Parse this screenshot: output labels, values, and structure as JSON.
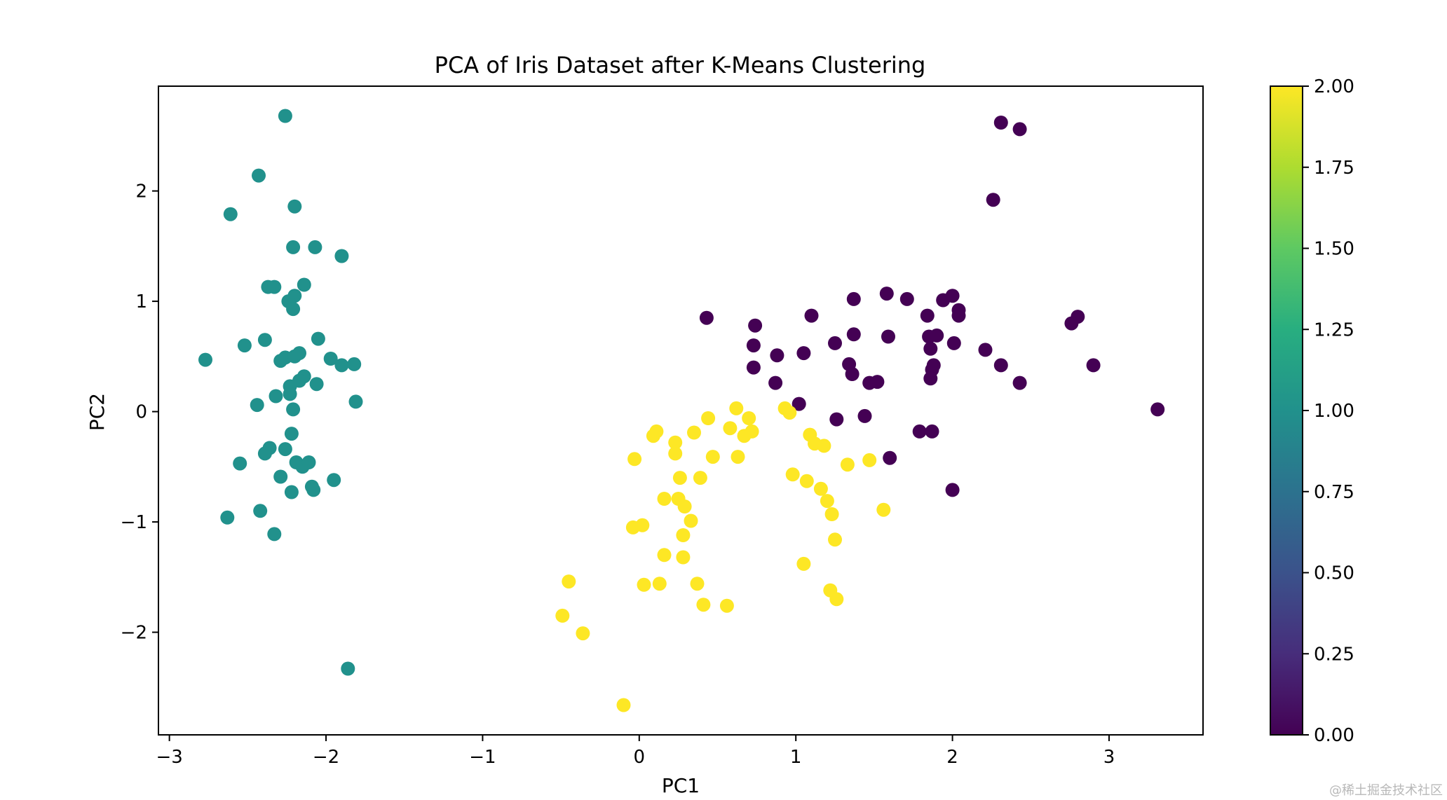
{
  "chart_data": {
    "type": "scatter",
    "title": "PCA of Iris Dataset after K-Means Clustering",
    "xlabel": "PC1",
    "ylabel": "PC2",
    "xlim": [
      -3.07,
      3.6
    ],
    "ylim": [
      -2.93,
      2.95
    ],
    "xticks": [
      -3,
      -2,
      -1,
      0,
      1,
      2,
      3
    ],
    "xtick_labels": [
      "−3",
      "−2",
      "−1",
      "0",
      "1",
      "2",
      "3"
    ],
    "yticks": [
      -2,
      -1,
      0,
      1,
      2
    ],
    "ytick_labels": [
      "−2",
      "−1",
      "0",
      "1",
      "2"
    ],
    "grid": false,
    "colorbar": {
      "colormap": "viridis",
      "range": [
        0,
        2
      ],
      "ticks": [
        0,
        0.25,
        0.5,
        0.75,
        1,
        1.25,
        1.5,
        1.75,
        2
      ],
      "tick_labels": [
        "0.00",
        "0.25",
        "0.50",
        "0.75",
        "1.00",
        "1.25",
        "1.50",
        "1.75",
        "2.00"
      ]
    },
    "colors": {
      "cluster_0": "#440154",
      "cluster_1": "#21918c",
      "cluster_2": "#fde725"
    },
    "points": [
      [
        -2.26,
        2.68,
        1
      ],
      [
        -2.43,
        2.14,
        1
      ],
      [
        -2.61,
        1.79,
        1
      ],
      [
        -2.2,
        1.86,
        1
      ],
      [
        -2.21,
        1.49,
        1
      ],
      [
        -2.07,
        1.49,
        1
      ],
      [
        -1.9,
        1.41,
        1
      ],
      [
        -2.37,
        1.13,
        1
      ],
      [
        -2.33,
        1.13,
        1
      ],
      [
        -2.14,
        1.15,
        1
      ],
      [
        -2.2,
        1.05,
        1
      ],
      [
        -2.24,
        1.0,
        1
      ],
      [
        -2.21,
        0.93,
        1
      ],
      [
        -2.39,
        0.65,
        1
      ],
      [
        -2.05,
        0.66,
        1
      ],
      [
        -2.52,
        0.6,
        1
      ],
      [
        -2.77,
        0.47,
        1
      ],
      [
        -2.29,
        0.46,
        1
      ],
      [
        -2.26,
        0.49,
        1
      ],
      [
        -2.2,
        0.5,
        1
      ],
      [
        -2.17,
        0.53,
        1
      ],
      [
        -1.97,
        0.48,
        1
      ],
      [
        -1.9,
        0.42,
        1
      ],
      [
        -1.82,
        0.43,
        1
      ],
      [
        -2.14,
        0.32,
        1
      ],
      [
        -2.17,
        0.28,
        1
      ],
      [
        -2.23,
        0.23,
        1
      ],
      [
        -2.06,
        0.25,
        1
      ],
      [
        -2.23,
        0.16,
        1
      ],
      [
        -2.32,
        0.14,
        1
      ],
      [
        -2.44,
        0.06,
        1
      ],
      [
        -2.21,
        0.02,
        1
      ],
      [
        -1.81,
        0.09,
        1
      ],
      [
        -2.22,
        -0.2,
        1
      ],
      [
        -2.26,
        -0.34,
        1
      ],
      [
        -2.36,
        -0.33,
        1
      ],
      [
        -2.39,
        -0.38,
        1
      ],
      [
        -2.55,
        -0.47,
        1
      ],
      [
        -2.19,
        -0.46,
        1
      ],
      [
        -2.15,
        -0.5,
        1
      ],
      [
        -2.11,
        -0.46,
        1
      ],
      [
        -2.29,
        -0.59,
        1
      ],
      [
        -1.95,
        -0.62,
        1
      ],
      [
        -2.09,
        -0.68,
        1
      ],
      [
        -2.08,
        -0.71,
        1
      ],
      [
        -2.22,
        -0.73,
        1
      ],
      [
        -2.42,
        -0.9,
        1
      ],
      [
        -2.63,
        -0.96,
        1
      ],
      [
        -2.33,
        -1.11,
        1
      ],
      [
        -1.86,
        -2.33,
        1
      ],
      [
        2.31,
        2.62,
        0
      ],
      [
        2.43,
        2.56,
        0
      ],
      [
        2.26,
        1.92,
        0
      ],
      [
        0.43,
        0.85,
        0
      ],
      [
        0.74,
        0.78,
        0
      ],
      [
        1.1,
        0.87,
        0
      ],
      [
        1.37,
        1.02,
        0
      ],
      [
        1.58,
        1.07,
        0
      ],
      [
        1.71,
        1.02,
        0
      ],
      [
        1.94,
        1.01,
        0
      ],
      [
        2.0,
        1.05,
        0
      ],
      [
        2.04,
        0.92,
        0
      ],
      [
        2.04,
        0.87,
        0
      ],
      [
        1.84,
        0.87,
        0
      ],
      [
        2.8,
        0.86,
        0
      ],
      [
        2.76,
        0.8,
        0
      ],
      [
        1.37,
        0.7,
        0
      ],
      [
        1.59,
        0.68,
        0
      ],
      [
        1.85,
        0.68,
        0
      ],
      [
        1.9,
        0.69,
        0
      ],
      [
        2.01,
        0.62,
        0
      ],
      [
        1.25,
        0.62,
        0
      ],
      [
        0.73,
        0.6,
        0
      ],
      [
        1.86,
        0.57,
        0
      ],
      [
        2.21,
        0.56,
        0
      ],
      [
        0.88,
        0.51,
        0
      ],
      [
        1.05,
        0.53,
        0
      ],
      [
        1.34,
        0.43,
        0
      ],
      [
        0.73,
        0.4,
        0
      ],
      [
        1.36,
        0.34,
        0
      ],
      [
        1.87,
        0.38,
        0
      ],
      [
        1.88,
        0.42,
        0
      ],
      [
        2.31,
        0.42,
        0
      ],
      [
        2.9,
        0.42,
        0
      ],
      [
        1.86,
        0.3,
        0
      ],
      [
        0.87,
        0.26,
        0
      ],
      [
        1.47,
        0.26,
        0
      ],
      [
        1.52,
        0.27,
        0
      ],
      [
        2.43,
        0.26,
        0
      ],
      [
        1.02,
        0.07,
        0
      ],
      [
        1.44,
        -0.04,
        0
      ],
      [
        1.26,
        -0.07,
        0
      ],
      [
        3.31,
        0.02,
        0
      ],
      [
        1.79,
        -0.18,
        0
      ],
      [
        1.87,
        -0.18,
        0
      ],
      [
        1.6,
        -0.42,
        0
      ],
      [
        2.0,
        -0.71,
        0
      ],
      [
        0.62,
        0.03,
        2
      ],
      [
        0.93,
        0.03,
        2
      ],
      [
        0.96,
        -0.01,
        2
      ],
      [
        0.7,
        -0.06,
        2
      ],
      [
        0.44,
        -0.06,
        2
      ],
      [
        0.58,
        -0.15,
        2
      ],
      [
        0.72,
        -0.18,
        2
      ],
      [
        0.67,
        -0.22,
        2
      ],
      [
        0.35,
        -0.19,
        2
      ],
      [
        0.09,
        -0.22,
        2
      ],
      [
        0.11,
        -0.18,
        2
      ],
      [
        1.09,
        -0.21,
        2
      ],
      [
        1.12,
        -0.29,
        2
      ],
      [
        1.18,
        -0.31,
        2
      ],
      [
        0.23,
        -0.28,
        2
      ],
      [
        0.23,
        -0.38,
        2
      ],
      [
        -0.03,
        -0.43,
        2
      ],
      [
        0.47,
        -0.41,
        2
      ],
      [
        0.63,
        -0.41,
        2
      ],
      [
        1.47,
        -0.44,
        2
      ],
      [
        1.33,
        -0.48,
        2
      ],
      [
        0.98,
        -0.57,
        2
      ],
      [
        1.07,
        -0.63,
        2
      ],
      [
        0.26,
        -0.6,
        2
      ],
      [
        0.39,
        -0.6,
        2
      ],
      [
        1.16,
        -0.7,
        2
      ],
      [
        0.16,
        -0.79,
        2
      ],
      [
        0.25,
        -0.79,
        2
      ],
      [
        1.2,
        -0.81,
        2
      ],
      [
        0.29,
        -0.86,
        2
      ],
      [
        1.23,
        -0.93,
        2
      ],
      [
        1.56,
        -0.89,
        2
      ],
      [
        0.33,
        -0.99,
        2
      ],
      [
        -0.04,
        -1.05,
        2
      ],
      [
        0.02,
        -1.03,
        2
      ],
      [
        0.28,
        -1.12,
        2
      ],
      [
        1.25,
        -1.16,
        2
      ],
      [
        0.16,
        -1.3,
        2
      ],
      [
        0.28,
        -1.32,
        2
      ],
      [
        1.05,
        -1.38,
        2
      ],
      [
        -0.45,
        -1.54,
        2
      ],
      [
        0.03,
        -1.57,
        2
      ],
      [
        0.13,
        -1.56,
        2
      ],
      [
        0.37,
        -1.56,
        2
      ],
      [
        1.22,
        -1.62,
        2
      ],
      [
        1.26,
        -1.7,
        2
      ],
      [
        0.41,
        -1.75,
        2
      ],
      [
        0.56,
        -1.76,
        2
      ],
      [
        -0.49,
        -1.85,
        2
      ],
      [
        -0.36,
        -2.01,
        2
      ],
      [
        -0.1,
        -2.66,
        2
      ]
    ]
  },
  "watermark": "@稀土掘金技术社区"
}
